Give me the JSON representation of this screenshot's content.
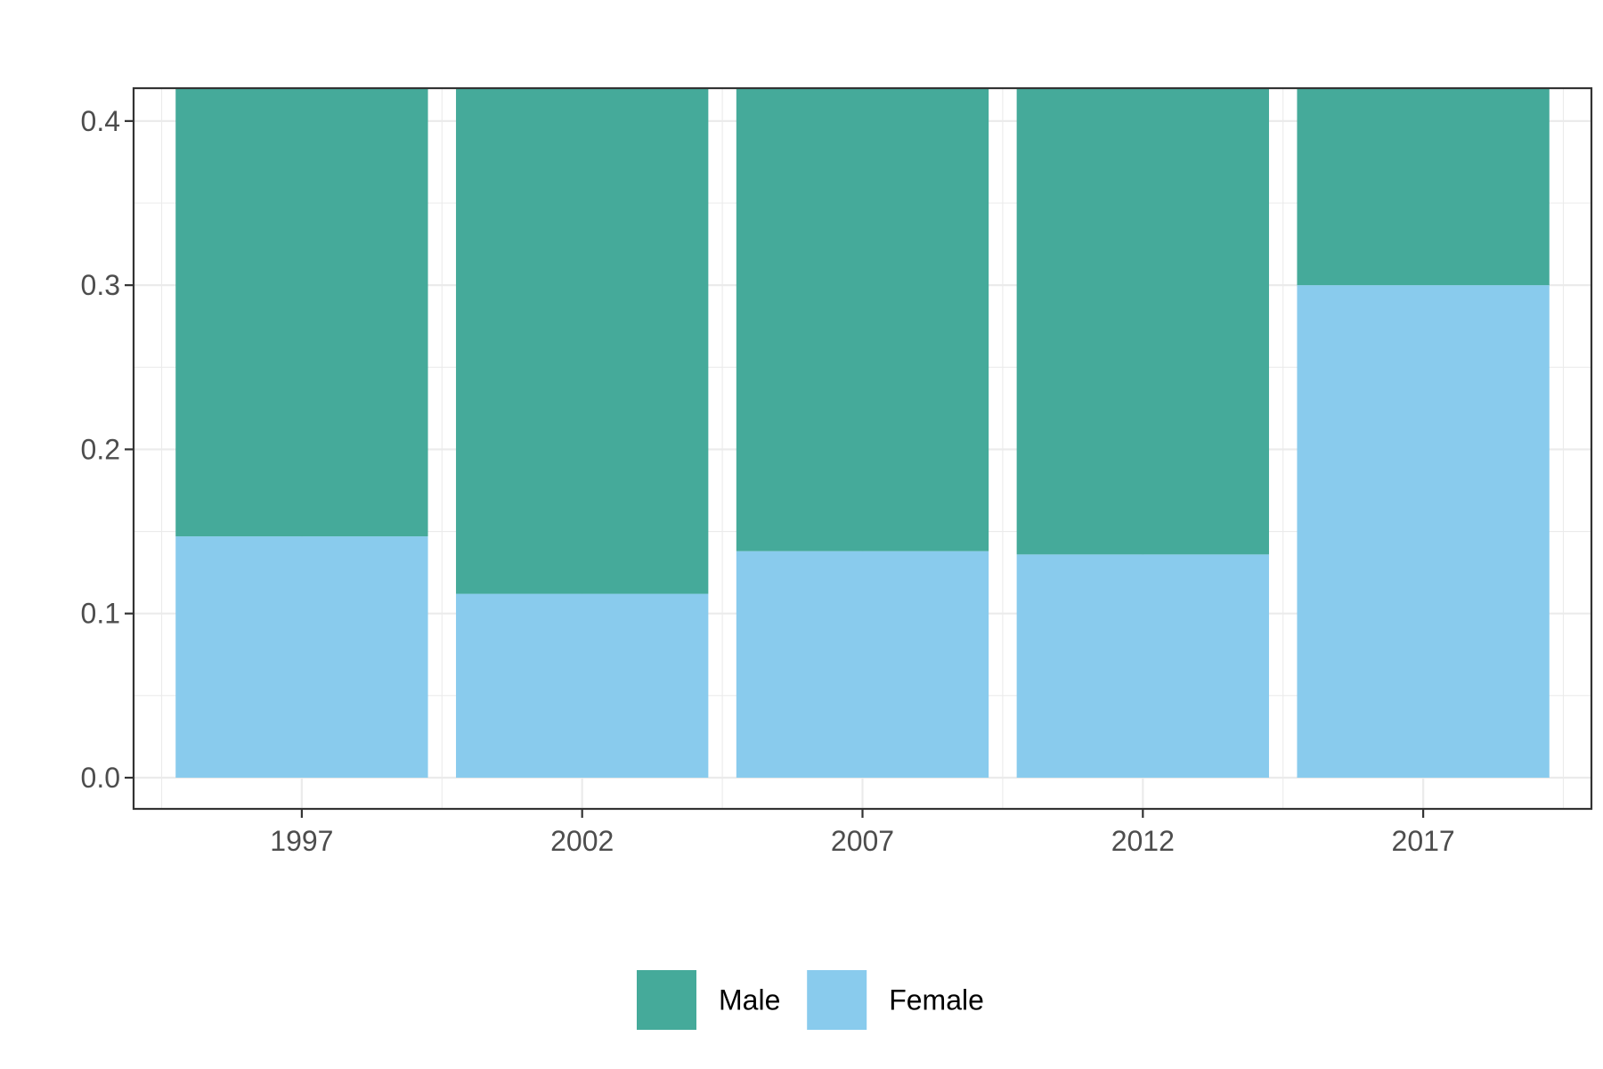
{
  "chart_data": {
    "type": "bar",
    "stacked": true,
    "categories": [
      "1997",
      "2002",
      "2007",
      "2012",
      "2017"
    ],
    "series": [
      {
        "name": "Female",
        "color": "#89CBED",
        "values": [
          0.147,
          0.112,
          0.138,
          0.136,
          0.3
        ]
      },
      {
        "name": "Male",
        "color": "#45AA9A",
        "values": [
          0.273,
          0.308,
          0.282,
          0.284,
          0.12
        ]
      }
    ],
    "title": "",
    "xlabel": "",
    "ylabel": "",
    "ylim": [
      -0.019,
      0.42
    ],
    "yticks": [
      "0.0",
      "0.1",
      "0.2",
      "0.3",
      "0.4"
    ],
    "grid": true,
    "legend": {
      "position": "bottom",
      "items": [
        {
          "label": "Male",
          "color": "#45AA9A"
        },
        {
          "label": "Female",
          "color": "#89CBED"
        }
      ]
    }
  }
}
